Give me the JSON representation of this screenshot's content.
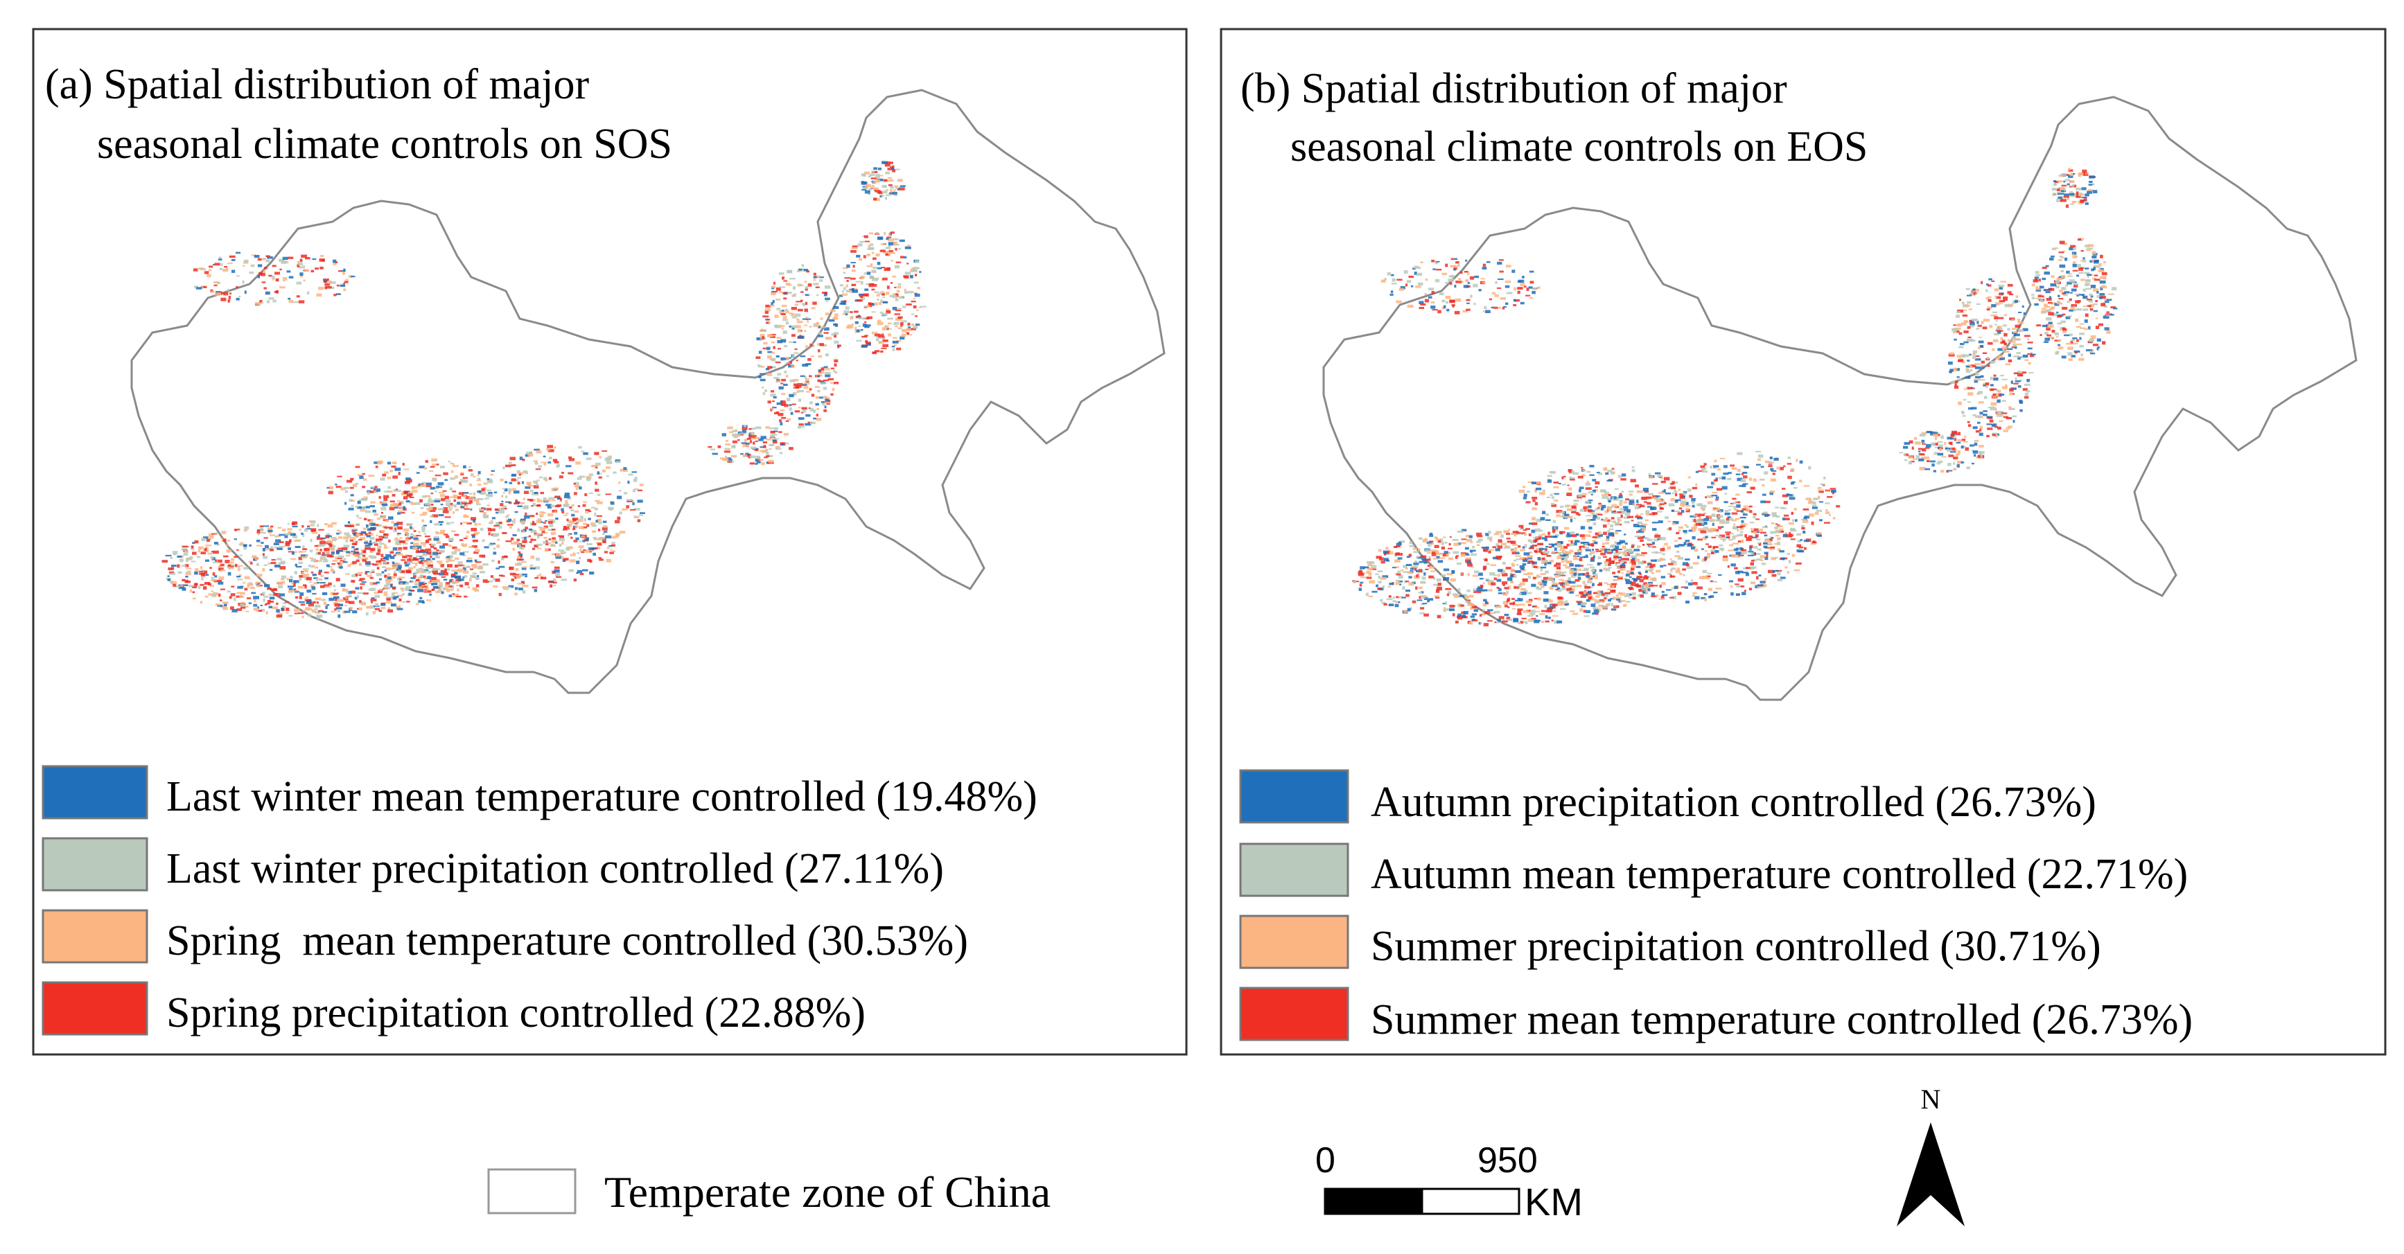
{
  "colors": {
    "blue": "#1f6fba",
    "gray_green": "#b9cabc",
    "orange": "#fbb582",
    "red": "#ef2e24",
    "outline": "#8a8a8a",
    "frame": "#333333",
    "black": "#000000"
  },
  "panels": [
    {
      "title_line1": "(a) Spatial distribution of major",
      "title_line2": "seasonal climate controls on SOS",
      "legend": [
        {
          "label": "Last winter mean temperature controlled (19.48%)",
          "color": "#1f6fba",
          "percent": 19.48
        },
        {
          "label": "Last winter precipitation controlled (27.11%)",
          "color": "#b9cabc",
          "percent": 27.11
        },
        {
          "label": "Spring  mean temperature controlled (30.53%)",
          "color": "#fbb582",
          "percent": 30.53
        },
        {
          "label": "Spring precipitation controlled (22.88%)",
          "color": "#ef2e24",
          "percent": 22.88
        }
      ]
    },
    {
      "title_line1": "(b) Spatial distribution of major",
      "title_line2": "seasonal climate controls on EOS",
      "legend": [
        {
          "label": "Autumn precipitation controlled (26.73%)",
          "color": "#1f6fba",
          "percent": 26.73
        },
        {
          "label": "Autumn mean temperature controlled (22.71%)",
          "color": "#b9cabc",
          "percent": 22.71
        },
        {
          "label": "Summer precipitation controlled (30.71%)",
          "color": "#fbb582",
          "percent": 30.71
        },
        {
          "label": "Summer mean temperature controlled (26.73%)",
          "color": "#ef2e24",
          "percent": 26.73
        }
      ]
    }
  ],
  "bottom_legend": {
    "label": "Temperate zone of China"
  },
  "scale_bar": {
    "start": "0",
    "end": "950",
    "unit": "KM"
  },
  "north_arrow": {
    "label": "N"
  }
}
